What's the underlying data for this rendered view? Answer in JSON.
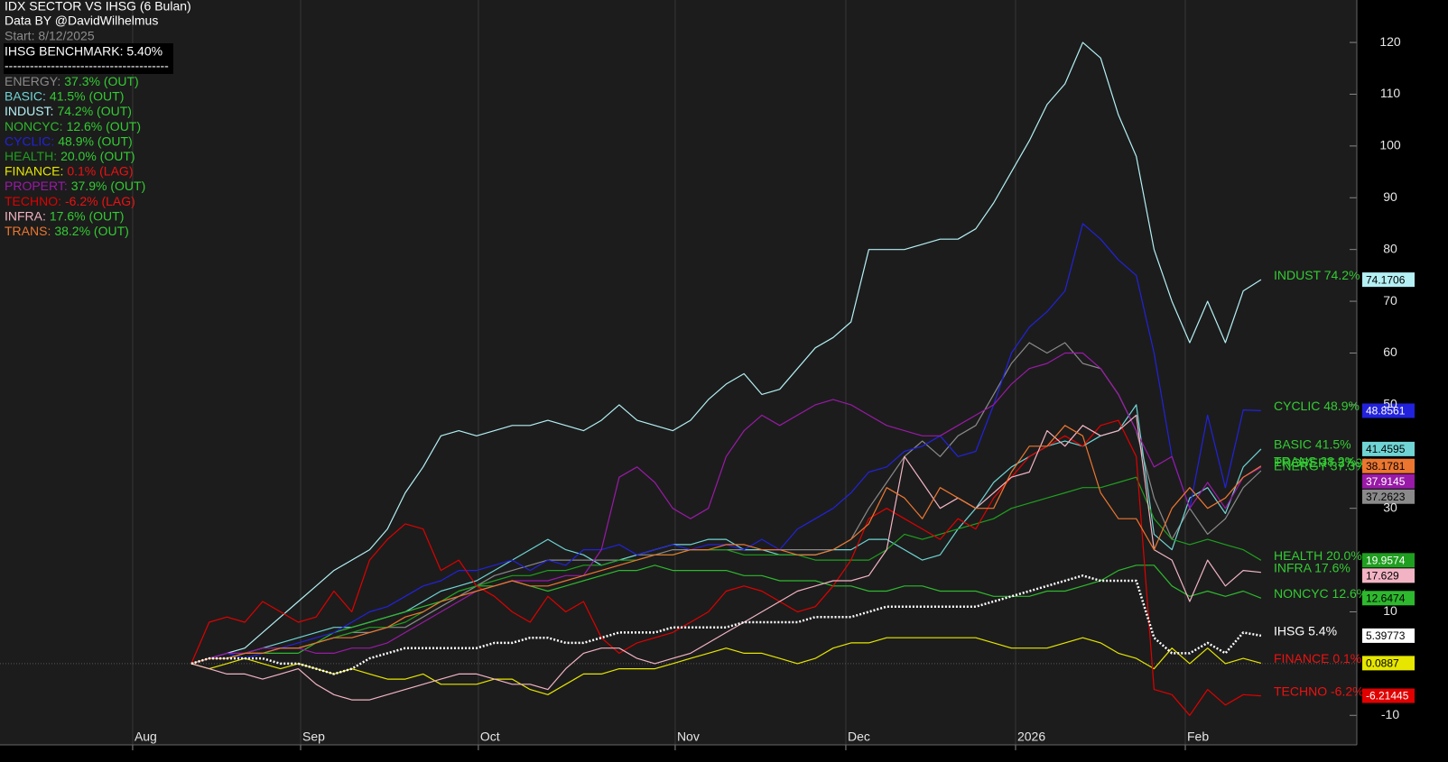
{
  "chart_data": {
    "type": "line",
    "title": "IDX SECTOR VS IHSG (6 Bulan)",
    "subtitle": "Data BY @DavidWilhelmus",
    "start": "Start: 8/12/2025",
    "benchmark": "IHSG BENCHMARK: 5.40%",
    "separator": "---------------------------------------",
    "xlim": [
      -10.73,
      65.37
    ],
    "xticks": [
      {
        "value": -3.29,
        "label": "Aug"
      },
      {
        "value": 6.13,
        "label": "Sep"
      },
      {
        "value": 16.1,
        "label": "Oct"
      },
      {
        "value": 27.14,
        "label": "Nov"
      },
      {
        "value": 36.71,
        "label": "Dec"
      },
      {
        "value": 46.23,
        "label": "2026"
      },
      {
        "value": 55.75,
        "label": "Feb"
      }
    ],
    "ylim": [
      -15.7,
      128.2
    ],
    "yticks": [
      120,
      110,
      100,
      90,
      80,
      70,
      60,
      50,
      30,
      10,
      -10
    ],
    "series": [
      {
        "legend_label": "ENERGY:",
        "legend_stat": "37.3% (OUT)",
        "stat_color": "#33cc33",
        "color": "#8a8a8a",
        "end_label": "ENERGY 37.3%",
        "label_color": "#33cc33",
        "values": [
          0,
          1,
          1,
          2,
          2,
          3,
          3,
          4,
          5,
          6,
          6,
          7,
          7,
          9,
          11,
          13,
          15,
          17,
          18,
          19,
          20,
          20,
          20,
          20,
          20,
          21,
          21,
          22,
          22,
          22,
          22,
          22,
          22,
          22,
          22,
          22,
          22,
          24,
          30,
          35,
          40,
          43,
          40,
          44,
          46,
          52,
          58,
          62,
          60,
          62,
          58,
          57,
          52,
          45,
          32,
          24,
          30,
          25,
          28,
          34,
          37.2623
        ]
      },
      {
        "legend_label": "BASIC:",
        "legend_stat": "41.5% (OUT)",
        "stat_color": "#33cc33",
        "color": "#70d4d4",
        "end_label": "BASIC 41.5%",
        "label_color": "#33cc33",
        "values": [
          0,
          1,
          1,
          2,
          3,
          4,
          5,
          6,
          7,
          7,
          8,
          9,
          10,
          12,
          14,
          15,
          16,
          18,
          20,
          22,
          24,
          22,
          21,
          19,
          20,
          21,
          22,
          23,
          23,
          24,
          24,
          22,
          22,
          21,
          21,
          21,
          22,
          22,
          24,
          24,
          22,
          20,
          21,
          26,
          30,
          35,
          38,
          40,
          42,
          43,
          42,
          44,
          45,
          50,
          25,
          22,
          32,
          34,
          29,
          38,
          41.4595
        ]
      },
      {
        "legend_label": "INDUST:",
        "legend_stat": "74.2% (OUT)",
        "stat_color": "#33cc33",
        "color": "#b4f0f4",
        "end_label": "INDUST 74.2%",
        "label_color": "#33cc33",
        "values": [
          0,
          1,
          2,
          3,
          6,
          9,
          12,
          15,
          18,
          20,
          22,
          26,
          33,
          38,
          44,
          45,
          44,
          45,
          46,
          46,
          47,
          46,
          45,
          47,
          50,
          47,
          46,
          45,
          47,
          51,
          54,
          56,
          52,
          53,
          57,
          61,
          63,
          66,
          80,
          80,
          80,
          81,
          82,
          82,
          84,
          89,
          95,
          101,
          108,
          112,
          120,
          117,
          106,
          98,
          80,
          70,
          62,
          70,
          62,
          72,
          74.1706
        ]
      },
      {
        "legend_label": "NONCYC:",
        "legend_stat": "12.6% (OUT)",
        "stat_color": "#33cc33",
        "color": "#2eb82e",
        "end_label": "NONCYC 12.6%",
        "label_color": "#33cc33",
        "values": [
          0,
          1,
          1,
          2,
          2,
          2,
          2,
          4,
          6,
          7,
          8,
          9,
          10,
          11,
          12,
          14,
          15,
          15,
          16,
          15,
          14,
          15,
          16,
          17,
          18,
          18,
          19,
          18,
          18,
          18,
          18,
          17,
          17,
          16,
          16,
          16,
          15,
          15,
          14,
          14,
          15,
          15,
          14,
          14,
          14,
          13,
          13,
          13,
          14,
          14,
          15,
          16,
          18,
          19,
          19,
          15,
          13,
          14,
          13,
          14,
          12.6474
        ]
      },
      {
        "legend_label": "CYCLIC:",
        "legend_stat": "48.9% (OUT)",
        "stat_color": "#33cc33",
        "color": "#2222dd",
        "end_label": "CYCLIC 48.9%",
        "label_color": "#33cc33",
        "values": [
          0,
          1,
          2,
          1,
          2,
          3,
          4,
          5,
          6,
          8,
          10,
          11,
          13,
          15,
          16,
          18,
          18,
          19,
          20,
          18,
          20,
          19,
          22,
          22,
          23,
          21,
          22,
          23,
          22,
          23,
          23,
          22,
          24,
          22,
          26,
          28,
          30,
          33,
          37,
          38,
          41,
          42,
          44,
          40,
          41,
          50,
          60,
          65,
          68,
          72,
          85,
          82,
          78,
          75,
          60,
          40,
          30,
          48,
          34,
          49,
          48.8561
        ]
      },
      {
        "legend_label": "HEALTH:",
        "legend_stat": "20.0% (OUT)",
        "stat_color": "#33cc33",
        "color": "#1f9f1f",
        "end_label": "HEALTH 20.0%",
        "label_color": "#33cc33",
        "values": [
          0,
          1,
          1,
          2,
          2,
          3,
          3,
          4,
          5,
          6,
          7,
          7,
          8,
          10,
          12,
          14,
          15,
          16,
          17,
          17,
          18,
          18,
          19,
          19,
          20,
          20,
          21,
          21,
          22,
          22,
          22,
          21,
          21,
          21,
          21,
          20,
          20,
          20,
          20,
          22,
          25,
          24,
          25,
          26,
          27,
          28,
          30,
          31,
          32,
          33,
          34,
          34,
          35,
          36,
          28,
          24,
          23,
          24,
          23,
          22,
          19.9574
        ]
      },
      {
        "legend_label": "FINANCE:",
        "legend_stat": "0.1% (LAG)",
        "stat_color": "#ee1111",
        "color": "#e6e600",
        "end_label": "FINANCE 0.1%",
        "label_color": "#ee1111",
        "values": [
          0,
          -1,
          0,
          1,
          0,
          -1,
          0,
          -1,
          -2,
          -1,
          -2,
          -3,
          -3,
          -2,
          -4,
          -4,
          -4,
          -3,
          -3,
          -5,
          -6,
          -4,
          -2,
          -2,
          -1,
          -1,
          -1,
          0,
          1,
          2,
          3,
          2,
          2,
          1,
          0,
          1,
          3,
          4,
          4,
          5,
          5,
          5,
          5,
          5,
          5,
          4,
          3,
          3,
          3,
          4,
          5,
          4,
          2,
          1,
          -1,
          3,
          0,
          3,
          0,
          1,
          0.0887
        ]
      },
      {
        "legend_label": "PROPERT:",
        "legend_stat": "37.9% (OUT)",
        "stat_color": "#33cc33",
        "color": "#9a1aa8",
        "end_label": "PROPERT 37.9%",
        "label_color": "#33cc33",
        "values": [
          0,
          1,
          2,
          2,
          3,
          3,
          3,
          2,
          2,
          3,
          3,
          4,
          6,
          8,
          10,
          12,
          14,
          15,
          16,
          16,
          16,
          17,
          17,
          22,
          36,
          38,
          35,
          30,
          28,
          30,
          40,
          45,
          48,
          46,
          48,
          50,
          51,
          50,
          48,
          46,
          45,
          44,
          44,
          46,
          48,
          50,
          54,
          57,
          58,
          60,
          60,
          57,
          52,
          45,
          38,
          40,
          30,
          35,
          30,
          36,
          37.9145
        ]
      },
      {
        "legend_label": "TECHNO:",
        "legend_stat": "-6.2% (LAG)",
        "stat_color": "#ee1111",
        "color": "#e00000",
        "end_label": "TECHNO -6.2%",
        "label_color": "#ee1111",
        "values": [
          0,
          8,
          9,
          8,
          12,
          10,
          8,
          9,
          14,
          10,
          20,
          24,
          27,
          26,
          18,
          20,
          15,
          13,
          10,
          8,
          13,
          10,
          12,
          5,
          2,
          4,
          5,
          6,
          8,
          10,
          14,
          15,
          14,
          12,
          10,
          11,
          15,
          20,
          28,
          30,
          28,
          26,
          24,
          28,
          26,
          32,
          36,
          40,
          42,
          44,
          42,
          46,
          47,
          40,
          -5,
          -6,
          -10,
          -5,
          -8,
          -6,
          -6.21445
        ]
      },
      {
        "legend_label": "INFRA:",
        "legend_stat": "17.6% (OUT)",
        "stat_color": "#33cc33",
        "color": "#f2b4c4",
        "end_label": "INFRA 17.6%",
        "label_color": "#33cc33",
        "values": [
          0,
          -1,
          -2,
          -2,
          -3,
          -2,
          -1,
          -4,
          -6,
          -7,
          -7,
          -6,
          -5,
          -4,
          -3,
          -2,
          -2,
          -3,
          -4,
          -4,
          -5,
          -1,
          2,
          3,
          3,
          1,
          0,
          1,
          2,
          4,
          6,
          8,
          10,
          12,
          14,
          15,
          16,
          16,
          17,
          22,
          40,
          35,
          30,
          32,
          30,
          33,
          36,
          37,
          45,
          42,
          46,
          44,
          45,
          48,
          22,
          20,
          12,
          20,
          15,
          18,
          17.629
        ]
      },
      {
        "legend_label": "TRANS:",
        "legend_stat": "38.2% (OUT)",
        "stat_color": "#33cc33",
        "color": "#ec7630",
        "end_label": "TRANS 38.2%",
        "label_color": "#33cc33",
        "values": [
          0,
          1,
          1,
          2,
          2,
          3,
          3,
          4,
          5,
          5,
          6,
          7,
          9,
          10,
          12,
          13,
          14,
          15,
          16,
          15,
          15,
          16,
          17,
          18,
          19,
          20,
          21,
          21,
          22,
          22,
          23,
          23,
          22,
          22,
          21,
          21,
          22,
          24,
          27,
          34,
          32,
          28,
          34,
          32,
          30,
          30,
          37,
          42,
          42,
          46,
          44,
          33,
          28,
          28,
          22,
          30,
          34,
          30,
          32,
          36,
          38.1781
        ]
      },
      {
        "color": "#ffffff",
        "style": "dotted",
        "end_label": "IHSG 5.4%",
        "label_color": "#ffffff",
        "values": [
          0,
          1,
          1,
          1,
          1,
          0,
          0,
          -1,
          -2,
          -1,
          1,
          2,
          3,
          3,
          3,
          3,
          3,
          4,
          4,
          5,
          5,
          4,
          4,
          5,
          6,
          6,
          6,
          7,
          7,
          7,
          7,
          8,
          8,
          8,
          8,
          9,
          9,
          9,
          10,
          11,
          11,
          11,
          11,
          11,
          11,
          12,
          13,
          14,
          15,
          16,
          17,
          16,
          16,
          16,
          5,
          2,
          2,
          4,
          2,
          6,
          5.39773
        ]
      }
    ]
  }
}
